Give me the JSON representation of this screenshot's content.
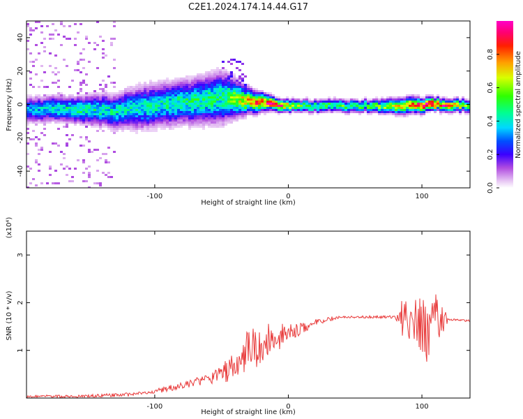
{
  "title": "C2E1.2024.174.14.44.G17",
  "chart_data": [
    {
      "type": "heatmap",
      "xlabel": "Height of straight line (km)",
      "ylabel": "Frequency (Hz)",
      "xlim": [
        -196,
        136
      ],
      "ylim": [
        -50,
        50
      ],
      "xticks": [
        -100,
        0,
        100
      ],
      "yticks": [
        -40,
        -20,
        0,
        20,
        40
      ],
      "grid": false,
      "colorbar": {
        "label": "Normalized spectral amplitude",
        "range": [
          0,
          1
        ],
        "ticks": [
          0.0,
          0.2,
          0.4,
          0.6,
          0.8
        ],
        "tick_labels": [
          "0.0",
          "0.2",
          "0.4",
          "0.6",
          "0.8"
        ]
      },
      "ridge": [
        {
          "x": -190,
          "center": -3,
          "width": 6,
          "amp": 0.35
        },
        {
          "x": -160,
          "center": -3,
          "width": 6,
          "amp": 0.45
        },
        {
          "x": -130,
          "center": -4,
          "width": 8,
          "amp": 0.4
        },
        {
          "x": -110,
          "center": -2,
          "width": 10,
          "amp": 0.4
        },
        {
          "x": -80,
          "center": 1,
          "width": 10,
          "amp": 0.45
        },
        {
          "x": -50,
          "center": 4,
          "width": 12,
          "amp": 0.45
        },
        {
          "x": -30,
          "center": 2,
          "width": 6,
          "amp": 0.7
        },
        {
          "x": -10,
          "center": 0,
          "width": 3,
          "amp": 0.9
        },
        {
          "x": 10,
          "center": -1,
          "width": 3,
          "amp": 0.5
        },
        {
          "x": 60,
          "center": -1,
          "width": 3,
          "amp": 0.5
        },
        {
          "x": 90,
          "center": -1,
          "width": 4,
          "amp": 0.7
        },
        {
          "x": 110,
          "center": 0,
          "width": 3,
          "amp": 0.95
        },
        {
          "x": 136,
          "center": -1,
          "width": 3,
          "amp": 0.5
        }
      ]
    },
    {
      "type": "line",
      "xlabel": "Height of straight line (km)",
      "ylabel": "SNR (10 * v/v)",
      "scale_label": "(x10⁴)",
      "xlim": [
        -196,
        136
      ],
      "ylim": [
        0,
        3.5
      ],
      "xticks": [
        -100,
        0,
        100
      ],
      "yticks": [
        1,
        2,
        3
      ],
      "grid": false,
      "color": "#e83a3a",
      "x": [
        -196,
        -180,
        -160,
        -140,
        -120,
        -110,
        -100,
        -90,
        -80,
        -70,
        -60,
        -50,
        -40,
        -35,
        -30,
        -25,
        -20,
        -15,
        -10,
        -5,
        0,
        10,
        20,
        30,
        40,
        50,
        60,
        70,
        80,
        85,
        90,
        95,
        100,
        105,
        108,
        110,
        115,
        120,
        130,
        136
      ],
      "y": [
        0.03,
        0.04,
        0.03,
        0.05,
        0.07,
        0.1,
        0.14,
        0.2,
        0.25,
        0.33,
        0.4,
        0.5,
        0.68,
        0.85,
        1.0,
        1.05,
        1.15,
        1.2,
        1.25,
        1.3,
        1.35,
        1.45,
        1.57,
        1.65,
        1.7,
        1.7,
        1.7,
        1.7,
        1.7,
        1.7,
        1.75,
        1.5,
        1.6,
        1.3,
        2.2,
        1.7,
        1.65,
        1.65,
        1.63,
        1.62
      ],
      "noise_envelope": [
        {
          "x": -196,
          "amp": 0.02
        },
        {
          "x": -100,
          "amp": 0.05
        },
        {
          "x": -60,
          "amp": 0.1
        },
        {
          "x": -40,
          "amp": 0.3
        },
        {
          "x": -25,
          "amp": 0.5
        },
        {
          "x": -10,
          "amp": 0.3
        },
        {
          "x": 10,
          "amp": 0.12
        },
        {
          "x": 40,
          "amp": 0.02
        },
        {
          "x": 80,
          "amp": 0.03
        },
        {
          "x": 88,
          "amp": 0.6
        },
        {
          "x": 100,
          "amp": 0.7
        },
        {
          "x": 112,
          "amp": 0.5
        },
        {
          "x": 120,
          "amp": 0.02
        },
        {
          "x": 136,
          "amp": 0.02
        }
      ]
    }
  ]
}
